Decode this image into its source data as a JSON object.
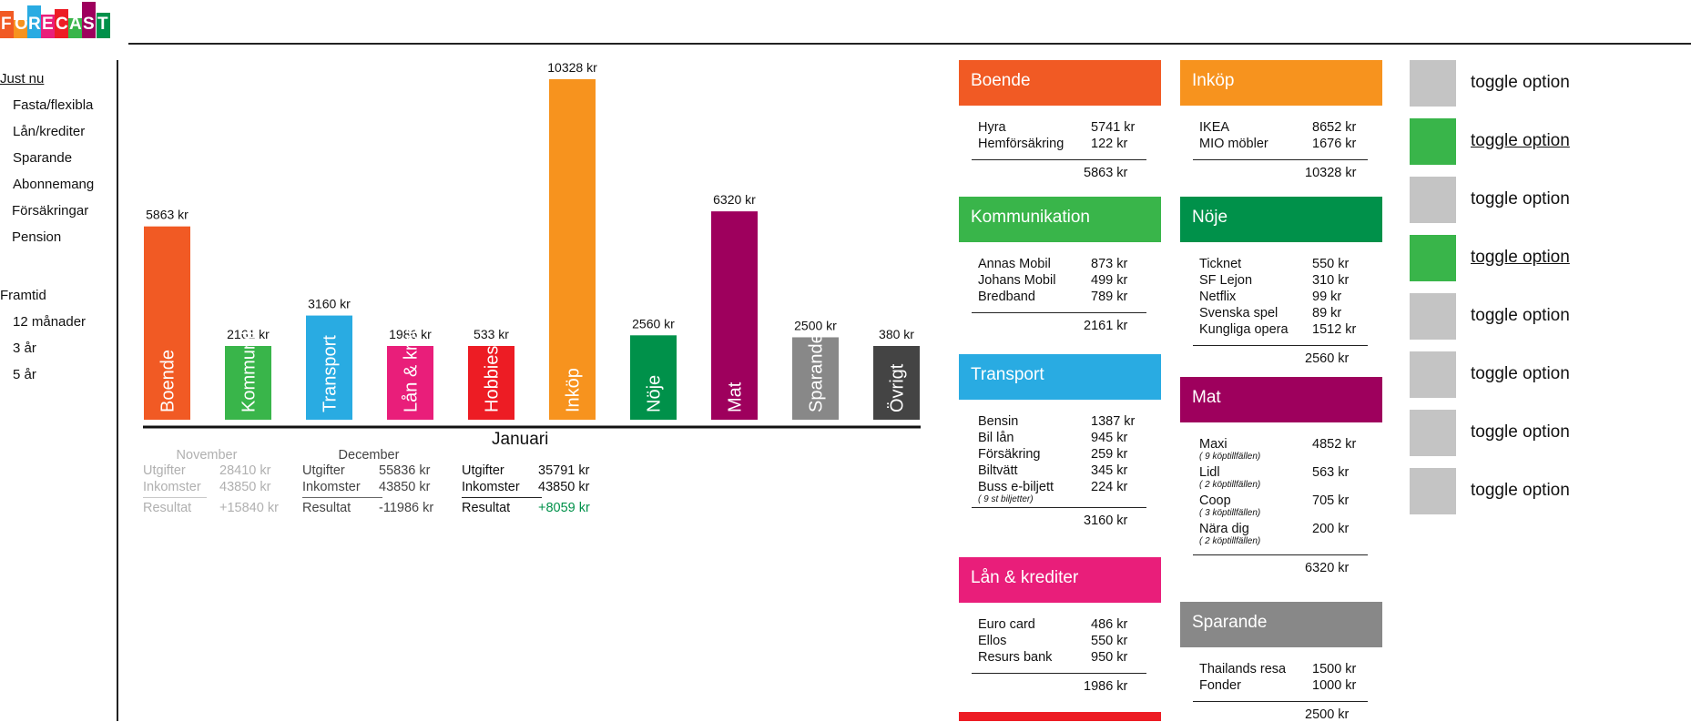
{
  "app": {
    "logo_letters": [
      "F",
      "O",
      "R",
      "E",
      "C",
      "A",
      "S",
      "T"
    ],
    "logo_colors": [
      "#f15a24",
      "#f7931e",
      "#29abe2",
      "#e91e7a",
      "#ed1c24",
      "#39b54a",
      "#9e005d",
      "#00914a"
    ]
  },
  "sidebar": {
    "section_now": "Just nu",
    "now_items": [
      "Fasta/flexibla",
      "Lån/krediter",
      "Sparande",
      "Abonnemang",
      "Försäkringar",
      "Pension"
    ],
    "section_future": "Framtid",
    "future_items": [
      "12 månader",
      "3 år",
      "5 år"
    ]
  },
  "chart_data": {
    "type": "bar",
    "categories": [
      "Boende",
      "Kommunikation",
      "Transport",
      "Lån & krediter",
      "Hobbies",
      "Inköp",
      "Nöje",
      "Mat",
      "Sparande",
      "Övrigt"
    ],
    "values": [
      5863,
      2161,
      3160,
      1986,
      533,
      10328,
      2560,
      6320,
      2500,
      380
    ],
    "value_labels": [
      "5863 kr",
      "2161 kr",
      "3160 kr",
      "1986 kr",
      "533 kr",
      "10328 kr",
      "2560 kr",
      "6320 kr",
      "2500 kr",
      "380 kr"
    ],
    "colors": [
      "#f15a24",
      "#39b54a",
      "#29abe2",
      "#e91e7a",
      "#ed1c24",
      "#f7931e",
      "#00914a",
      "#9e005d",
      "#888888",
      "#444444"
    ],
    "xlabel": "Januari",
    "ylim": [
      0,
      10328
    ]
  },
  "months": [
    {
      "name": "November",
      "utgifter_label": "Utgifter",
      "utgifter": "28410 kr",
      "inkomster_label": "Inkomster",
      "inkomster": "43850 kr",
      "resultat_label": "Resultat",
      "resultat": "+15840 kr"
    },
    {
      "name": "December",
      "utgifter_label": "Utgifter",
      "utgifter": "55836 kr",
      "inkomster_label": "Inkomster",
      "inkomster": "43850 kr",
      "resultat_label": "Resultat",
      "resultat": "-11986 kr"
    },
    {
      "name": "",
      "utgifter_label": "Utgifter",
      "utgifter": "35791 kr",
      "inkomster_label": "Inkomster",
      "inkomster": "43850 kr",
      "resultat_label": "Resultat",
      "resultat": "+8059 kr"
    }
  ],
  "cards": {
    "boende": {
      "title": "Boende",
      "color": "#f15a24",
      "items": [
        {
          "name": "Hyra",
          "amount": "5741 kr"
        },
        {
          "name": "Hemförsäkring",
          "amount": "122 kr"
        }
      ],
      "total": "5863 kr"
    },
    "kommunikation": {
      "title": "Kommunikation",
      "color": "#39b54a",
      "items": [
        {
          "name": "Annas Mobil",
          "amount": "873 kr"
        },
        {
          "name": "Johans Mobil",
          "amount": "499 kr"
        },
        {
          "name": "Bredband",
          "amount": "789 kr"
        }
      ],
      "total": "2161 kr"
    },
    "transport": {
      "title": "Transport",
      "color": "#29abe2",
      "items": [
        {
          "name": "Bensin",
          "amount": "1387 kr"
        },
        {
          "name": "Bil lån",
          "amount": "945 kr"
        },
        {
          "name": "Försäkring",
          "amount": "259 kr"
        },
        {
          "name": "Biltvätt",
          "amount": "345 kr"
        },
        {
          "name": "Buss e-biljett",
          "amount": "224 kr",
          "note": "( 9 st biljetter)"
        }
      ],
      "total": "3160 kr"
    },
    "lan": {
      "title": "Lån & krediter",
      "color": "#e91e7a",
      "items": [
        {
          "name": "Euro card",
          "amount": "486 kr"
        },
        {
          "name": "Ellos",
          "amount": "550 kr"
        },
        {
          "name": "Resurs bank",
          "amount": "950 kr"
        }
      ],
      "total": "1986 kr"
    },
    "inkop": {
      "title": "Inköp",
      "color": "#f7931e",
      "items": [
        {
          "name": "IKEA",
          "amount": "8652 kr"
        },
        {
          "name": "MIO möbler",
          "amount": "1676 kr"
        }
      ],
      "total": "10328 kr"
    },
    "noje": {
      "title": "Nöje",
      "color": "#00914a",
      "items": [
        {
          "name": "Ticknet",
          "amount": "550 kr"
        },
        {
          "name": "SF Lejon",
          "amount": "310 kr"
        },
        {
          "name": "Netflix",
          "amount": "99 kr"
        },
        {
          "name": "Svenska spel",
          "amount": "89 kr"
        },
        {
          "name": "Kungliga opera",
          "amount": "1512 kr"
        }
      ],
      "total": "2560 kr"
    },
    "mat": {
      "title": "Mat",
      "color": "#9e005d",
      "items": [
        {
          "name": "Maxi",
          "amount": "4852 kr",
          "note": "( 9 köptillfällen)"
        },
        {
          "name": "Lidl",
          "amount": "563 kr",
          "note": "( 2 köptillfällen)"
        },
        {
          "name": "Coop",
          "amount": "705 kr",
          "note": "( 3 köptillfällen)"
        },
        {
          "name": "Nära dig",
          "amount": "200 kr",
          "note": "( 2 köptillfällen)"
        }
      ],
      "total": "6320 kr"
    },
    "sparande": {
      "title": "Sparande",
      "color": "#888888",
      "items": [
        {
          "name": "Thailands resa",
          "amount": "1500 kr"
        },
        {
          "name": "Fonder",
          "amount": "1000 kr"
        }
      ],
      "total": "2500 kr"
    }
  },
  "toggles": [
    {
      "label": "toggle option",
      "on": false
    },
    {
      "label": "toggle option",
      "on": true
    },
    {
      "label": "toggle option",
      "on": false
    },
    {
      "label": "toggle option",
      "on": true
    },
    {
      "label": "toggle option",
      "on": false
    },
    {
      "label": "toggle option",
      "on": false
    },
    {
      "label": "toggle option",
      "on": false
    },
    {
      "label": "toggle option",
      "on": false
    }
  ],
  "colors": {
    "toggle_on": "#39b54a",
    "toggle_off": "#c4c4c4",
    "positive": "#00914a",
    "muted": "#b0b0b0"
  }
}
